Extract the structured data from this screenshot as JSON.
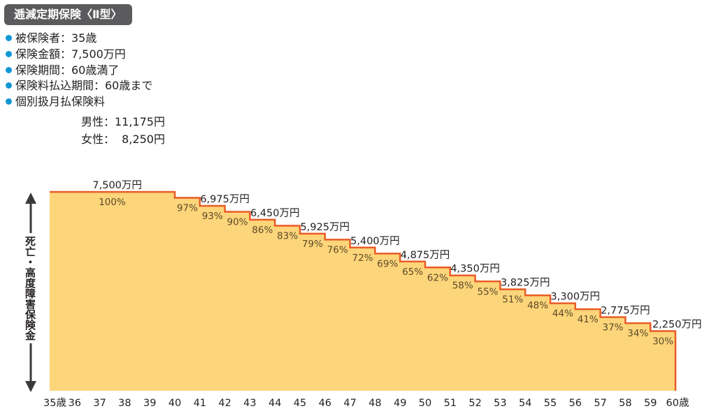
{
  "title": "逓減定期保険〈Ⅱ型〉",
  "conditions": [
    {
      "text": "被保険者：35歳"
    },
    {
      "text": "保険金額：7,500万円"
    },
    {
      "text": "保険期間：60歳満了"
    },
    {
      "text": "保険料払込期間：60歳まで"
    },
    {
      "text": "個別扱月払保険料"
    }
  ],
  "premiums": {
    "male": "男性：11,175円",
    "female": "女性：  8,250円"
  },
  "colors": {
    "area_fill": "#fdd57a",
    "area_stroke": "#ea5b25",
    "title_bg": "#5b5b5d",
    "bullet": "#1296d4"
  },
  "chart_data": {
    "type": "area",
    "step": true,
    "ylabel": "死亡・高度障害保険金",
    "x": [
      "35歳",
      "36",
      "37",
      "38",
      "39",
      "40",
      "41",
      "42",
      "43",
      "44",
      "45",
      "46",
      "47",
      "48",
      "49",
      "50",
      "51",
      "52",
      "53",
      "54",
      "55",
      "56",
      "57",
      "58",
      "59",
      "60歳"
    ],
    "percent_values": [
      100,
      100,
      100,
      100,
      100,
      97,
      93,
      90,
      86,
      83,
      79,
      76,
      72,
      69,
      65,
      62,
      58,
      55,
      51,
      48,
      44,
      41,
      37,
      34,
      30
    ],
    "percent_labels": [
      "100%",
      "",
      "",
      "",
      "",
      "97%",
      "93%",
      "90%",
      "86%",
      "83%",
      "79%",
      "76%",
      "72%",
      "69%",
      "65%",
      "62%",
      "58%",
      "55%",
      "51%",
      "48%",
      "44%",
      "41%",
      "37%",
      "34%",
      "30%"
    ],
    "amount_labels": [
      {
        "index": 2,
        "text": "7,500万円"
      },
      {
        "index": 6,
        "text": "6,975万円"
      },
      {
        "index": 8,
        "text": "6,450万円"
      },
      {
        "index": 10,
        "text": "5,925万円"
      },
      {
        "index": 12,
        "text": "5,400万円"
      },
      {
        "index": 14,
        "text": "4,875万円"
      },
      {
        "index": 16,
        "text": "4,350万円"
      },
      {
        "index": 18,
        "text": "3,825万円"
      },
      {
        "index": 20,
        "text": "3,300万円"
      },
      {
        "index": 22,
        "text": "2,775万円"
      },
      {
        "index": 24,
        "text": "2,250万円"
      }
    ],
    "ylim": [
      0,
      100
    ]
  }
}
